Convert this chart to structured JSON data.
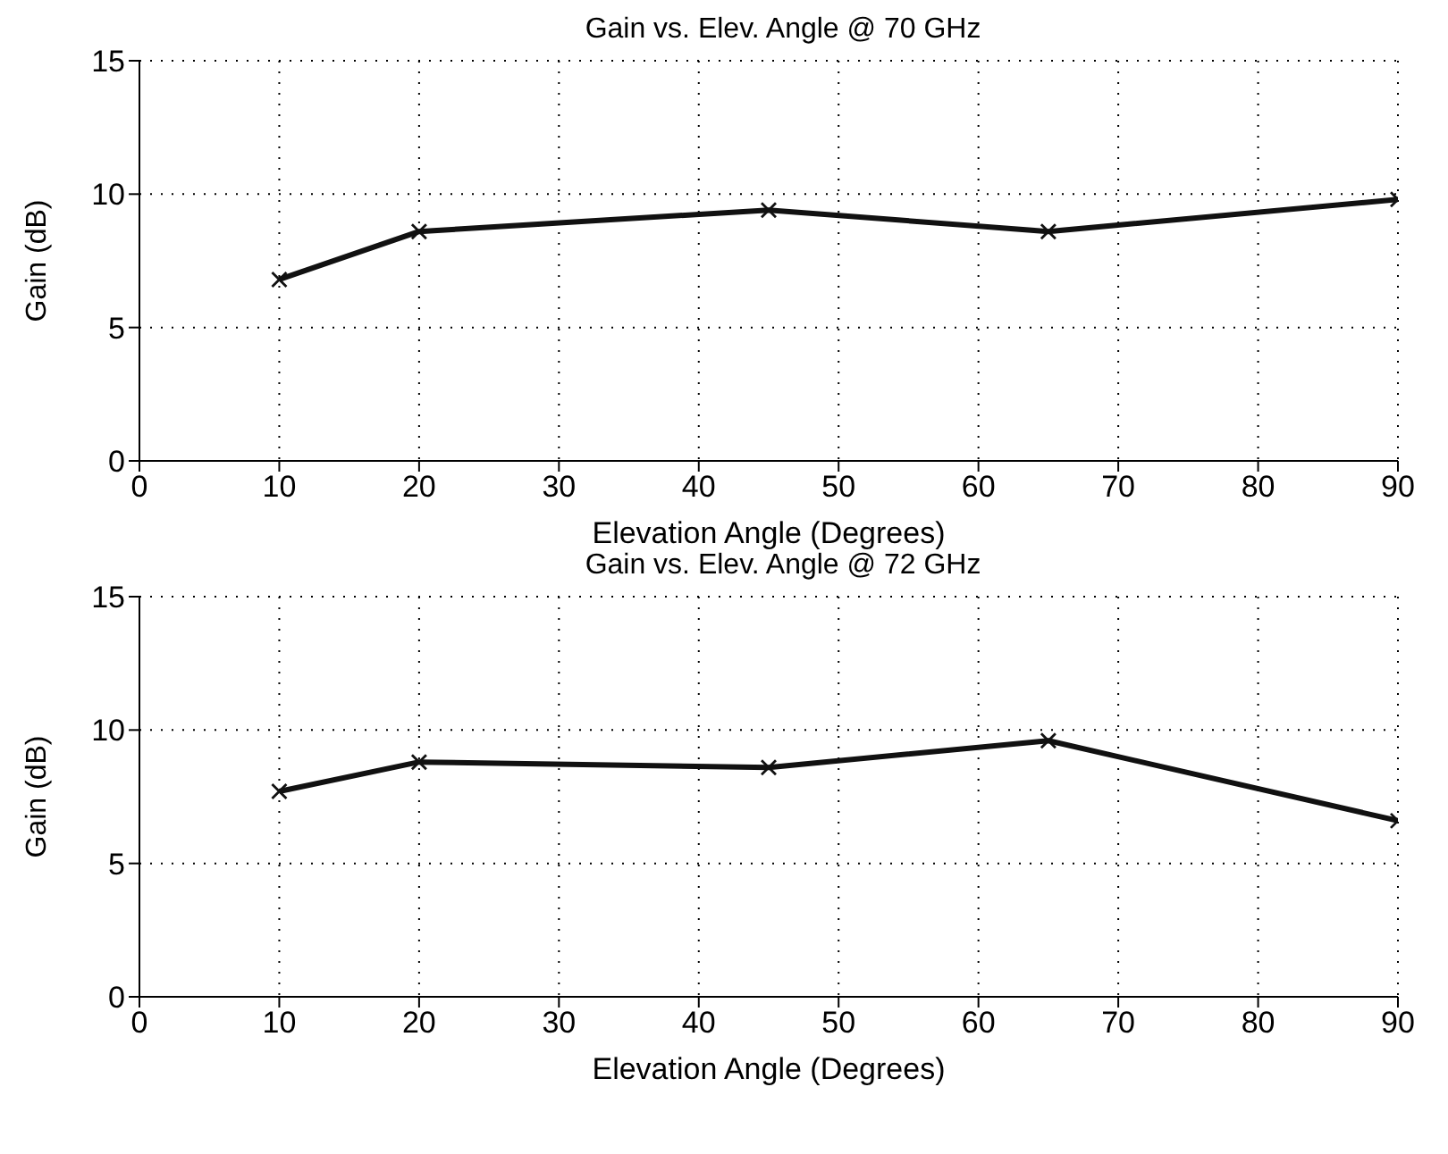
{
  "chart_data": [
    {
      "type": "line",
      "title": "Gain vs. Elev. Angle @ 70 GHz",
      "xlabel": "Elevation Angle (Degrees)",
      "ylabel": "Gain (dB)",
      "x": [
        10,
        20,
        45,
        65,
        90
      ],
      "series": [
        {
          "color": "#111111",
          "values": [
            6.8,
            8.6,
            9.4,
            8.6,
            9.8
          ]
        }
      ],
      "xlim": [
        0,
        90
      ],
      "xticks": [
        0,
        10,
        20,
        30,
        40,
        50,
        60,
        70,
        80,
        90
      ],
      "ylim": [
        0,
        15
      ],
      "yticks": [
        0,
        5,
        10,
        15
      ],
      "grid": true,
      "marker": "cross",
      "line_style": "solid",
      "legend": false
    },
    {
      "type": "line",
      "title": "Gain vs. Elev. Angle @ 72 GHz",
      "xlabel": "Elevation Angle (Degrees)",
      "ylabel": "Gain (dB)",
      "x": [
        10,
        20,
        45,
        65,
        90
      ],
      "series": [
        {
          "color": "#111111",
          "values": [
            7.7,
            8.8,
            8.6,
            9.6,
            6.6
          ]
        }
      ],
      "xlim": [
        0,
        90
      ],
      "xticks": [
        0,
        10,
        20,
        30,
        40,
        50,
        60,
        70,
        80,
        90
      ],
      "ylim": [
        0,
        15
      ],
      "yticks": [
        0,
        5,
        10,
        15
      ],
      "grid": true,
      "marker": "cross",
      "line_style": "solid",
      "legend": false
    }
  ]
}
